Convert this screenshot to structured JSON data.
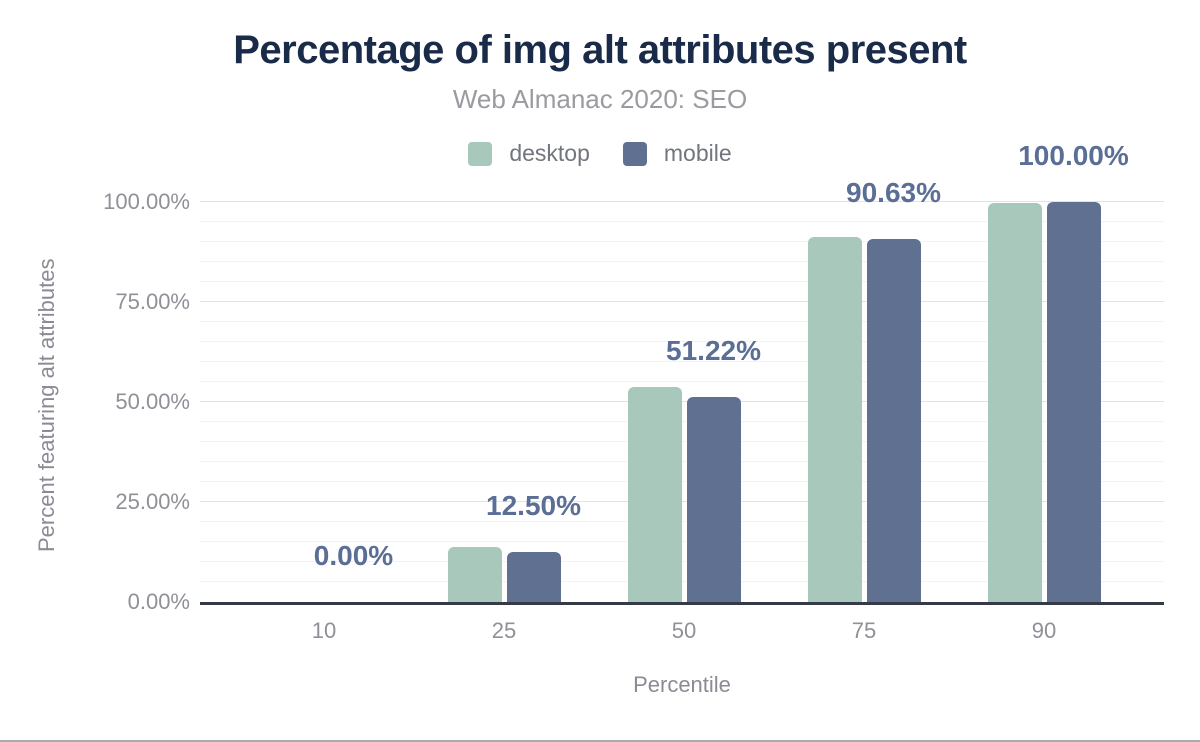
{
  "title": "Percentage of img alt attributes present",
  "subtitle": "Web Almanac 2020: SEO",
  "legend": [
    {
      "label": "desktop",
      "color": "#a7c8ba"
    },
    {
      "label": "mobile",
      "color": "#607090"
    }
  ],
  "chart_data": {
    "type": "bar",
    "title": "Percentage of img alt attributes present",
    "subtitle": "Web Almanac 2020: SEO",
    "categories": [
      "10",
      "25",
      "50",
      "75",
      "90"
    ],
    "xlabel": "Percentile",
    "ylabel": "Percent featuring alt attributes",
    "ylim": [
      0,
      100
    ],
    "yticks": [
      "0.00%",
      "25.00%",
      "50.00%",
      "75.00%",
      "100.00%"
    ],
    "grid": {
      "major_interval_pct": 25,
      "minor_interval_pct": 5
    },
    "legend_position": "top",
    "series": [
      {
        "name": "desktop",
        "color": "#a7c8ba",
        "values": [
          0,
          13.75,
          53.75,
          91.25,
          99.75
        ]
      },
      {
        "name": "mobile",
        "color": "#607090",
        "values": [
          0,
          12.5,
          51.22,
          90.63,
          100
        ]
      }
    ],
    "data_labels": [
      "0.00%",
      "12.50%",
      "51.22%",
      "90.63%",
      "100.00%"
    ],
    "data_label_series": "mobile"
  },
  "colors": {
    "title": "#1a2b49",
    "subtitle": "#9a9aa0",
    "data_label": "#5a6e96",
    "tick_label": "#8f9098",
    "axis_line": "#343b47",
    "grid_major": "#e2e2e7",
    "grid_minor": "#f3f3f6"
  }
}
